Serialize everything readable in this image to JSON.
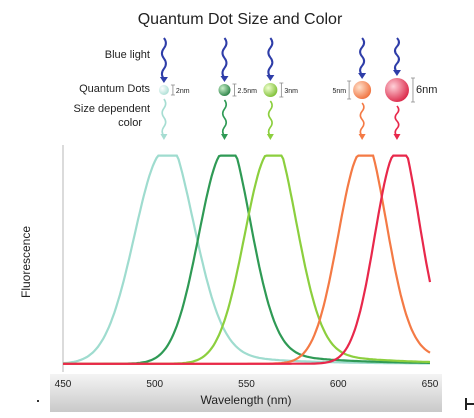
{
  "title": "Quantum Dot Size and Color",
  "labels": {
    "blue_light": "Blue light",
    "quantum_dots": "Quantum Dots",
    "size_dependent_1": "Size dependent",
    "size_dependent_2": "color"
  },
  "dots": [
    {
      "size_label": "2nm",
      "color": "#a6ddd2",
      "emission_peak_nm": 505
    },
    {
      "size_label": "2.5nm",
      "color": "#2f9a55",
      "emission_peak_nm": 538
    },
    {
      "size_label": "3nm",
      "color": "#8ccf3e",
      "emission_peak_nm": 563
    },
    {
      "size_label": "5nm",
      "color": "#f47a45",
      "emission_peak_nm": 613
    },
    {
      "size_label": "6nm",
      "color": "#e8284b",
      "emission_peak_nm": 632
    }
  ],
  "chart_data": {
    "type": "line",
    "xlabel": "Wavelength (nm)",
    "ylabel": "Fluorescence",
    "xlim": [
      450,
      650
    ],
    "x_ticks": [
      "450",
      "500",
      "550",
      "600",
      "650"
    ],
    "series": [
      {
        "color": "#9fdccf",
        "peak_x": 505,
        "width": 16
      },
      {
        "color": "#2f9a55",
        "peak_x": 538,
        "width": 14
      },
      {
        "color": "#8ccf3e",
        "peak_x": 563,
        "width": 14
      },
      {
        "color": "#f47a45",
        "peak_x": 613,
        "width": 13
      },
      {
        "color": "#e8284b",
        "peak_x": 632,
        "width": 12
      }
    ],
    "peak_value": 1.0,
    "ylim": [
      0,
      1.05
    ]
  }
}
